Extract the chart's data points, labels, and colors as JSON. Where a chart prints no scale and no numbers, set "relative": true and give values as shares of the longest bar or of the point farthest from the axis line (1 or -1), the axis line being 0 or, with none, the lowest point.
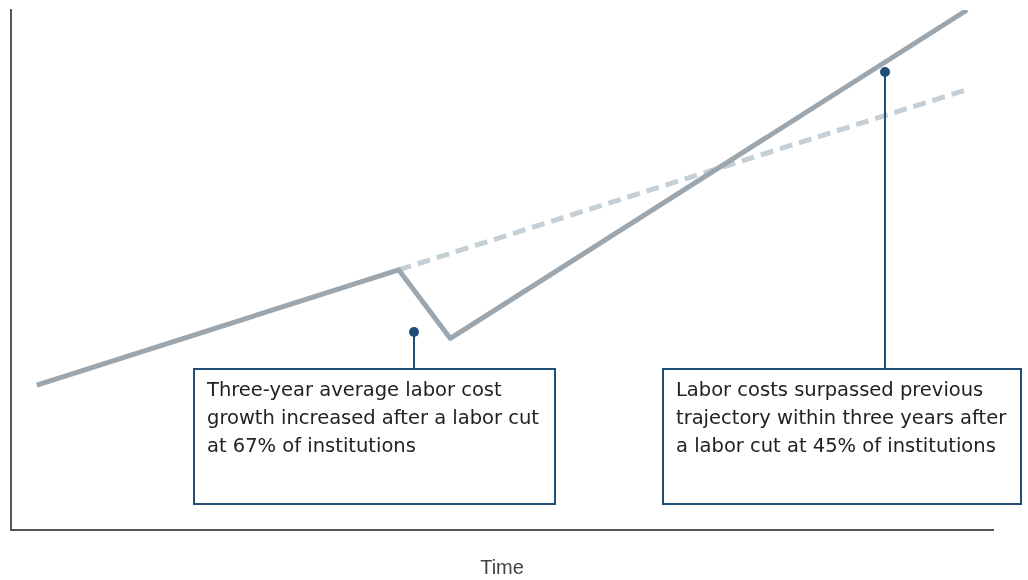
{
  "chart_data": {
    "type": "line",
    "relative": true,
    "xlabel": "Time",
    "categories": [
      null,
      null,
      null,
      null,
      null,
      null,
      null,
      null,
      null,
      null,
      null,
      null,
      null,
      null,
      null,
      null,
      null,
      null,
      null,
      null,
      null,
      null,
      null,
      null,
      null,
      null,
      null,
      null,
      null,
      null,
      null,
      null,
      null,
      null,
      null,
      null,
      null,
      null,
      null
    ],
    "series": [
      {
        "color": "#9ba6af",
        "line_style": "solid",
        "values": [
          null,
          0.278,
          null,
          null,
          null,
          null,
          null,
          null,
          null,
          null,
          null,
          null,
          null,
          null,
          null,
          0.5,
          null,
          0.368,
          null,
          null,
          null,
          null,
          null,
          null,
          null,
          null,
          null,
          null,
          null,
          null,
          null,
          null,
          null,
          null,
          null,
          null,
          null,
          1.0,
          null
        ]
      },
      {
        "color": "#c5cfd6",
        "line_style": "dashed",
        "values": [
          null,
          null,
          null,
          null,
          null,
          null,
          null,
          null,
          null,
          null,
          null,
          null,
          null,
          null,
          null,
          0.5,
          null,
          null,
          null,
          null,
          null,
          null,
          null,
          null,
          null,
          null,
          null,
          null,
          null,
          null,
          null,
          null,
          null,
          null,
          null,
          null,
          null,
          0.847,
          null
        ]
      }
    ],
    "annotations": [
      "Three-year average labor cost growth increased after a labor cut at 67% of institutions",
      "Labor costs surpassed previous trajectory within three years after a labor cut at 45% of institutions"
    ],
    "grid": false,
    "legend": false,
    "marker": "none"
  }
}
